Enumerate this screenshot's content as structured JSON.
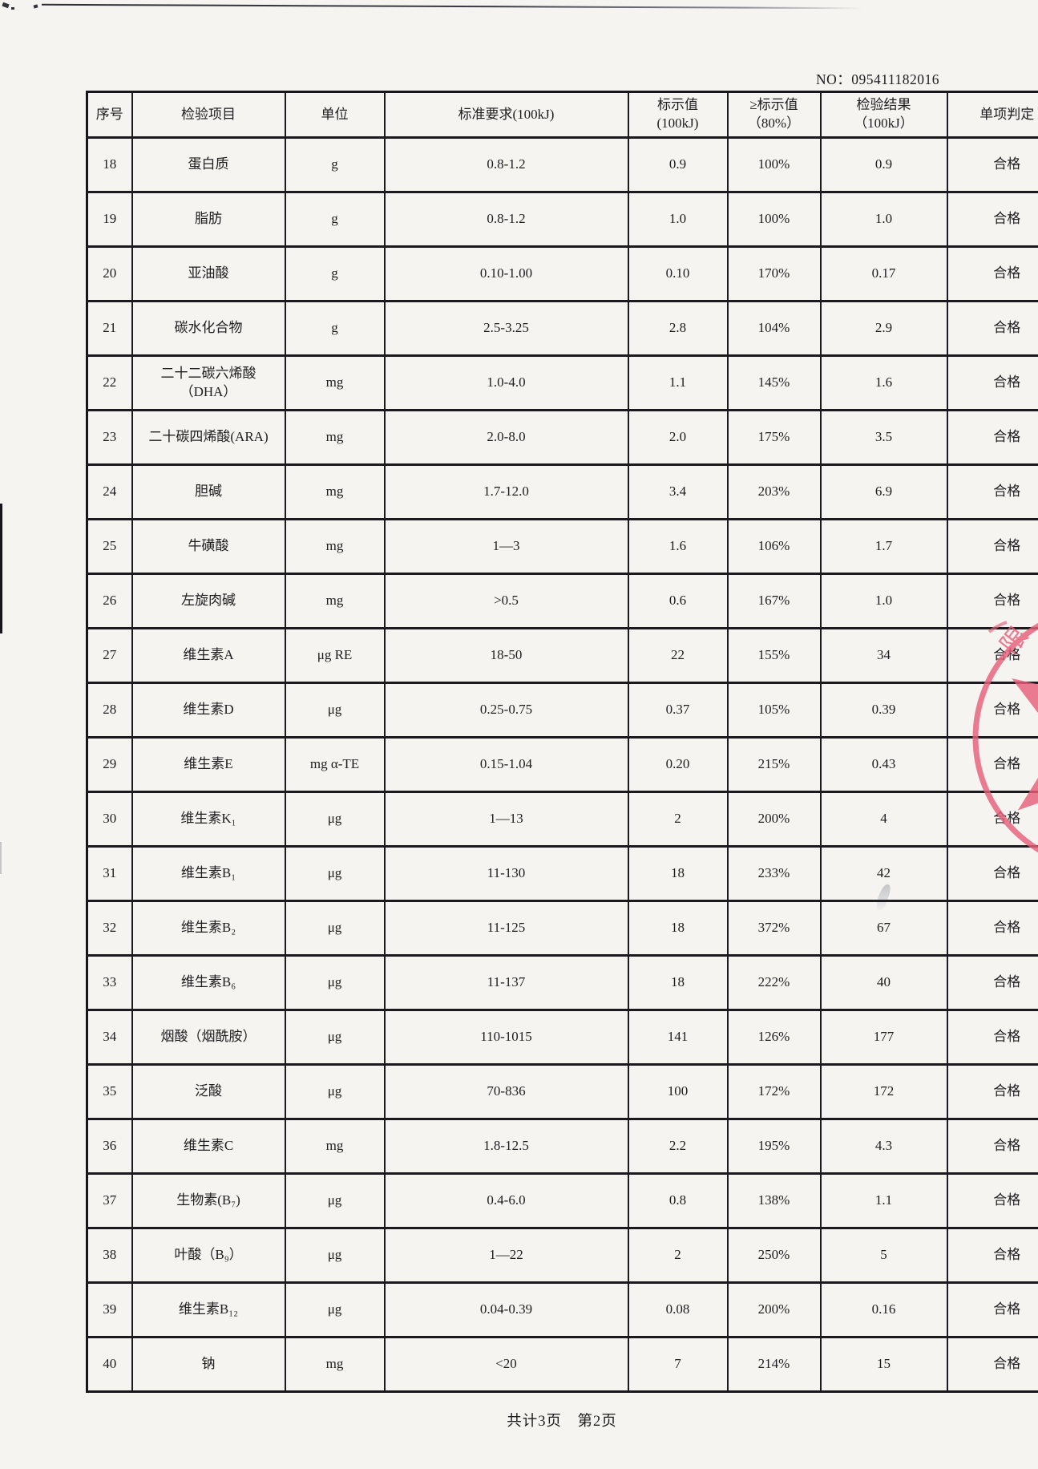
{
  "doc_no": "NO：095411182016",
  "table": {
    "columns": [
      {
        "l1": "序号",
        "l2": ""
      },
      {
        "l1": "检验项目",
        "l2": ""
      },
      {
        "l1": "单位",
        "l2": ""
      },
      {
        "l1": "标准要求(100kJ)",
        "l2": ""
      },
      {
        "l1": "标示值",
        "l2": "(100kJ)"
      },
      {
        "l1": "≥标示值",
        "l2": "（80%）"
      },
      {
        "l1": "检验结果",
        "l2": "（100kJ）"
      },
      {
        "l1": "单项判定",
        "l2": ""
      }
    ],
    "rows": [
      [
        "18",
        "蛋白质",
        "g",
        "0.8-1.2",
        "0.9",
        "100%",
        "0.9",
        "合格"
      ],
      [
        "19",
        "脂肪",
        "g",
        "0.8-1.2",
        "1.0",
        "100%",
        "1.0",
        "合格"
      ],
      [
        "20",
        "亚油酸",
        "g",
        "0.10-1.00",
        "0.10",
        "170%",
        "0.17",
        "合格"
      ],
      [
        "21",
        "碳水化合物",
        "g",
        "2.5-3.25",
        "2.8",
        "104%",
        "2.9",
        "合格"
      ],
      [
        "22",
        "二十二碳六烯酸\n（DHA）",
        "mg",
        "1.0-4.0",
        "1.1",
        "145%",
        "1.6",
        "合格"
      ],
      [
        "23",
        "二十碳四烯酸(ARA)",
        "mg",
        "2.0-8.0",
        "2.0",
        "175%",
        "3.5",
        "合格"
      ],
      [
        "24",
        "胆碱",
        "mg",
        "1.7-12.0",
        "3.4",
        "203%",
        "6.9",
        "合格"
      ],
      [
        "25",
        "牛磺酸",
        "mg",
        "1—3",
        "1.6",
        "106%",
        "1.7",
        "合格"
      ],
      [
        "26",
        "左旋肉碱",
        "mg",
        ">0.5",
        "0.6",
        "167%",
        "1.0",
        "合格"
      ],
      [
        "27",
        "维生素A",
        "μg RE",
        "18-50",
        "22",
        "155%",
        "34",
        "合格"
      ],
      [
        "28",
        "维生素D",
        "μg",
        "0.25-0.75",
        "0.37",
        "105%",
        "0.39",
        "合格"
      ],
      [
        "29",
        "维生素E",
        "mg α-TE",
        "0.15-1.04",
        "0.20",
        "215%",
        "0.43",
        "合格"
      ],
      [
        "30",
        "维生素K₁",
        "μg",
        "1—13",
        "2",
        "200%",
        "4",
        "合格"
      ],
      [
        "31",
        "维生素B₁",
        "μg",
        "11-130",
        "18",
        "233%",
        "42",
        "合格"
      ],
      [
        "32",
        "维生素B₂",
        "μg",
        "11-125",
        "18",
        "372%",
        "67",
        "合格"
      ],
      [
        "33",
        "维生素B₆",
        "μg",
        "11-137",
        "18",
        "222%",
        "40",
        "合格"
      ],
      [
        "34",
        "烟酸（烟酰胺）",
        "μg",
        "110-1015",
        "141",
        "126%",
        "177",
        "合格"
      ],
      [
        "35",
        "泛酸",
        "μg",
        "70-836",
        "100",
        "172%",
        "172",
        "合格"
      ],
      [
        "36",
        "维生素C",
        "mg",
        "1.8-12.5",
        "2.2",
        "195%",
        "4.3",
        "合格"
      ],
      [
        "37",
        "生物素(B₇)",
        "μg",
        "0.4-6.0",
        "0.8",
        "138%",
        "1.1",
        "合格"
      ],
      [
        "38",
        "叶酸（B₉）",
        "μg",
        "1—22",
        "2",
        "250%",
        "5",
        "合格"
      ],
      [
        "39",
        "维生素B₁₂",
        "μg",
        "0.04-0.39",
        "0.08",
        "200%",
        "0.16",
        "合格"
      ],
      [
        "40",
        "钠",
        "mg",
        "<20",
        "7",
        "214%",
        "15",
        "合格"
      ]
    ]
  },
  "footer": {
    "page_info": "共计3页　第2页"
  },
  "stamp": {
    "color": "#e8607a",
    "partial_text": "限"
  }
}
